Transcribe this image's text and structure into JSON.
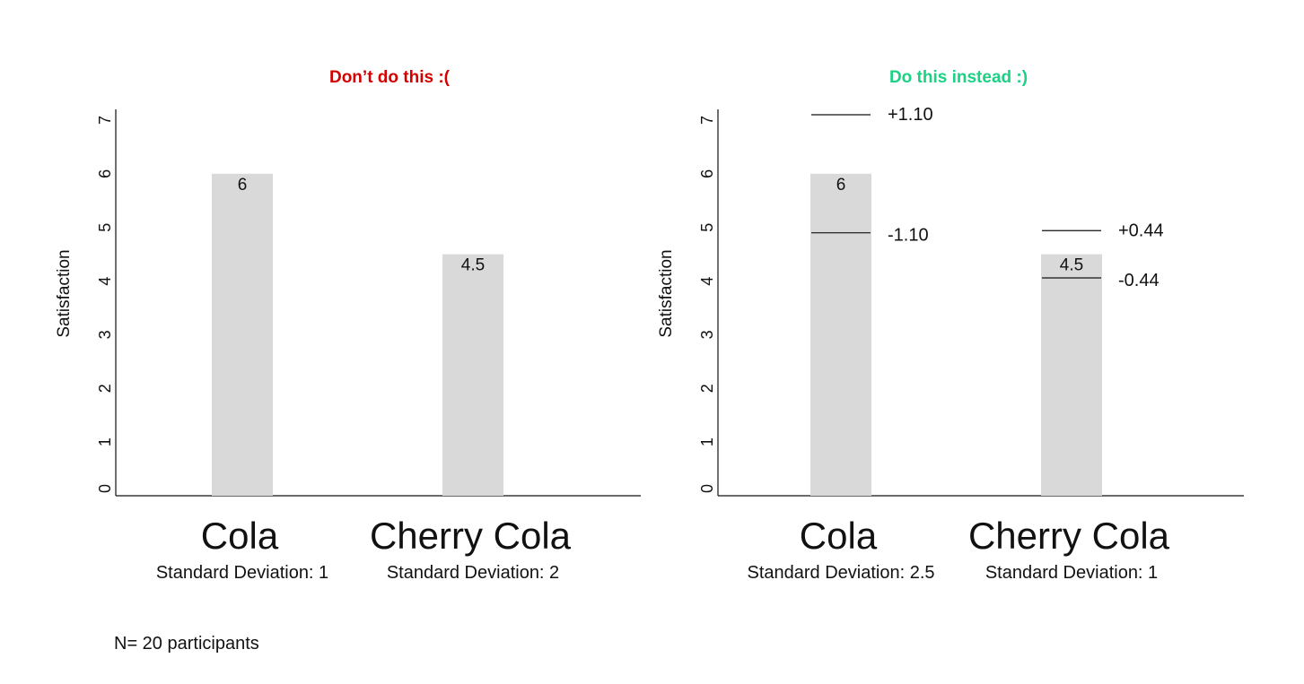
{
  "chart_data": [
    {
      "type": "bar",
      "title": "Don’t do this :(",
      "title_color": "#d40000",
      "ylabel": "Satisfaction",
      "ylim": [
        0,
        7.2
      ],
      "yticks": [
        0,
        1,
        2,
        3,
        4,
        5,
        6,
        7
      ],
      "bar_color": "#d9d9d9",
      "categories": [
        "Cola",
        "Cherry Cola"
      ],
      "values": [
        6,
        4.5
      ],
      "data_labels": [
        "6",
        "4.5"
      ],
      "sd_labels": [
        "Standard Deviation: 1",
        "Standard Deviation: 2"
      ],
      "errors": []
    },
    {
      "type": "bar",
      "title": "Do this instead :)",
      "title_color": "#1ad184",
      "ylabel": "Satisfaction",
      "ylim": [
        0,
        7.2
      ],
      "yticks": [
        0,
        1,
        2,
        3,
        4,
        5,
        6,
        7
      ],
      "bar_color": "#d9d9d9",
      "categories": [
        "Cola",
        "Cherry Cola"
      ],
      "values": [
        6,
        4.5
      ],
      "data_labels": [
        "6",
        "4.5"
      ],
      "sd_labels": [
        "Standard Deviation: 2.5",
        "Standard Deviation: 1"
      ],
      "errors": [
        {
          "upper": 1.1,
          "lower": 1.1,
          "upper_label": "+1.10",
          "lower_label": "-1.10"
        },
        {
          "upper": 0.44,
          "lower": 0.44,
          "upper_label": "+0.44",
          "lower_label": "-0.44"
        }
      ]
    }
  ],
  "footnote": "N= 20 participants"
}
